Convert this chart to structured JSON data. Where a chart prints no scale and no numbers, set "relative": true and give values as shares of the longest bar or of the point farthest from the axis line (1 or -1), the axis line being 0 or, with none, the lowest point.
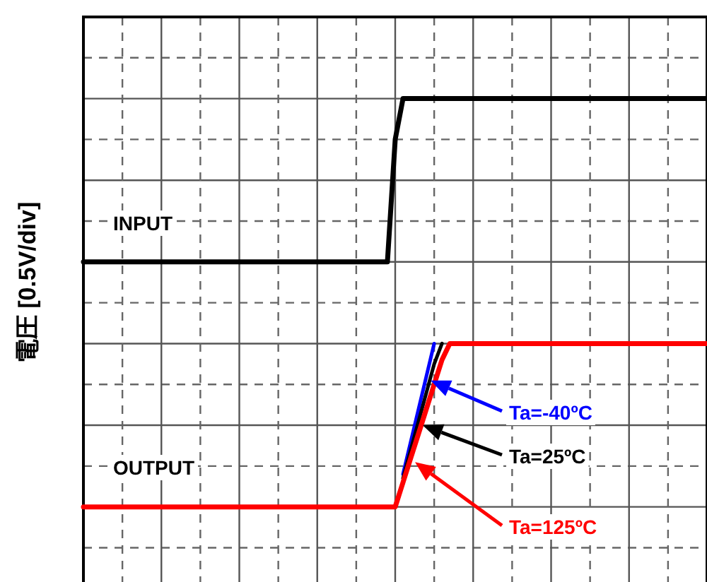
{
  "chart_data": {
    "type": "line",
    "relative": true,
    "grid": true,
    "ylabel": "電圧 [0.5V/div]",
    "categories": [
      null,
      null,
      null,
      null,
      null,
      null,
      null,
      null,
      null,
      null,
      null,
      null,
      null,
      null,
      null,
      null,
      null,
      null,
      null,
      null,
      null,
      null,
      null,
      null,
      null,
      null,
      null,
      null,
      null,
      null,
      null,
      null,
      null,
      null,
      null,
      null,
      null,
      null,
      null,
      null,
      null,
      null,
      null,
      null,
      null,
      null,
      null,
      null,
      null,
      null,
      null,
      null,
      null,
      null,
      null,
      null,
      null,
      null,
      null,
      null,
      null,
      null,
      null,
      null,
      null,
      null,
      null,
      null,
      null,
      null,
      null,
      null,
      null,
      null,
      null,
      null,
      null,
      null,
      null,
      null,
      null
    ],
    "series": [
      {
        "name": "INPUT",
        "color": "#000000",
        "values": [
          0.6,
          0.6,
          0.6,
          0.6,
          0.6,
          0.6,
          0.6,
          0.6,
          0.6,
          0.6,
          0.6,
          0.6,
          0.6,
          0.6,
          0.6,
          0.6,
          0.6,
          0.6,
          0.6,
          0.6,
          0.6,
          0.6,
          0.6,
          0.6,
          0.6,
          0.6,
          0.6,
          0.6,
          0.6,
          0.6,
          0.6,
          0.6,
          0.6,
          0.6,
          0.6,
          0.6,
          0.6,
          0.6,
          0.6,
          0.6,
          0.9,
          1,
          1,
          1,
          1,
          1,
          1,
          1,
          1,
          1,
          1,
          1,
          1,
          1,
          1,
          1,
          1,
          1,
          1,
          1,
          1,
          1,
          1,
          1,
          1,
          1,
          1,
          1,
          1,
          1,
          1,
          1,
          1,
          1,
          1,
          1,
          1,
          1,
          1,
          1,
          1
        ]
      },
      {
        "name": "Ta=-40ºC",
        "color": "#0000ff",
        "values": [
          null,
          null,
          null,
          null,
          null,
          null,
          null,
          null,
          null,
          null,
          null,
          null,
          null,
          null,
          null,
          null,
          null,
          null,
          null,
          null,
          null,
          null,
          null,
          null,
          null,
          null,
          null,
          null,
          null,
          null,
          null,
          null,
          null,
          null,
          null,
          null,
          null,
          null,
          null,
          null,
          null,
          0.08,
          0.16,
          0.24,
          0.32,
          0.4,
          null,
          null,
          null,
          null,
          null,
          null,
          null,
          null,
          null,
          null,
          null,
          null,
          null,
          null,
          null,
          null,
          null,
          null,
          null,
          null,
          null,
          null,
          null,
          null,
          null,
          null,
          null,
          null,
          null,
          null,
          null,
          null,
          null,
          null,
          null
        ]
      },
      {
        "name": "Ta=25ºC",
        "color": "#000000",
        "values": [
          null,
          null,
          null,
          null,
          null,
          null,
          null,
          null,
          null,
          null,
          null,
          null,
          null,
          null,
          null,
          null,
          null,
          null,
          null,
          null,
          null,
          null,
          null,
          null,
          null,
          null,
          null,
          null,
          null,
          null,
          null,
          null,
          null,
          null,
          null,
          null,
          null,
          null,
          null,
          null,
          null,
          0.07,
          0.14,
          0.21,
          0.28,
          0.35,
          0.4,
          null,
          null,
          null,
          null,
          null,
          null,
          null,
          null,
          null,
          null,
          null,
          null,
          null,
          null,
          null,
          null,
          null,
          null,
          null,
          null,
          null,
          null,
          null,
          null,
          null,
          null,
          null,
          null,
          null,
          null,
          null,
          null,
          null,
          null
        ]
      },
      {
        "name": "Ta=125ºC",
        "color": "#ff0000",
        "values": [
          0,
          0,
          0,
          0,
          0,
          0,
          0,
          0,
          0,
          0,
          0,
          0,
          0,
          0,
          0,
          0,
          0,
          0,
          0,
          0,
          0,
          0,
          0,
          0,
          0,
          0,
          0,
          0,
          0,
          0,
          0,
          0,
          0,
          0,
          0,
          0,
          0,
          0,
          0,
          0,
          0,
          0.06,
          0.12,
          0.18,
          0.24,
          0.3,
          0.36,
          0.4,
          0.4,
          0.4,
          0.4,
          0.4,
          0.4,
          0.4,
          0.4,
          0.4,
          0.4,
          0.4,
          0.4,
          0.4,
          0.4,
          0.4,
          0.4,
          0.4,
          0.4,
          0.4,
          0.4,
          0.4,
          0.4,
          0.4,
          0.4,
          0.4,
          0.4,
          0.4,
          0.4,
          0.4,
          0.4,
          0.4,
          0.4,
          0.4,
          0.4
        ]
      }
    ],
    "legend": "bottom right",
    "annotations": [
      "OUTPUT"
    ]
  }
}
